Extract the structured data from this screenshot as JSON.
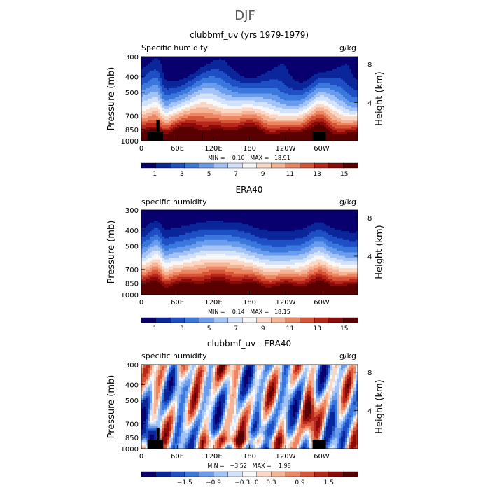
{
  "figure": {
    "title": "DJF"
  },
  "colors": {
    "diverging": [
      "#08006e",
      "#0b259a",
      "#1f4fc4",
      "#3b78dd",
      "#6a9cee",
      "#a3c3f6",
      "#d2e2fb",
      "#f7f7f7",
      "#fad8c5",
      "#f5b495",
      "#ec8663",
      "#d95537",
      "#b8281a",
      "#8c0a0a",
      "#5a0000"
    ]
  },
  "chart_data": [
    {
      "type": "heatmap",
      "title": "clubbmf_uv (yrs 1979-1979)",
      "left_label": "Specific humidity",
      "right_label": "g/kg",
      "ylabel": "Pressure (mb)",
      "y2label": "Height (km)",
      "x_ticks": [
        "0",
        "60E",
        "120E",
        "180",
        "120W",
        "60W"
      ],
      "y_ticks": [
        "300",
        "400",
        "500",
        "700",
        "850",
        "1000"
      ],
      "y2_ticks": [
        "8",
        "4"
      ],
      "stats": "MIN =    0.10   MAX =   18.91",
      "colorbar_labels": [
        "1",
        "3",
        "5",
        "7",
        "9",
        "11",
        "13",
        "15"
      ],
      "colorbar_values": [
        1,
        3,
        5,
        7,
        9,
        11,
        13,
        15
      ],
      "range": [
        0.1,
        18.91
      ],
      "mode": "humidity",
      "topography": true
    },
    {
      "type": "heatmap",
      "title": "ERA40",
      "left_label": "specific humidity",
      "right_label": "g/kg",
      "ylabel": "Pressure (mb)",
      "y2label": "Height (km)",
      "x_ticks": [
        "0",
        "60E",
        "120E",
        "180",
        "120W",
        "60W"
      ],
      "y_ticks": [
        "300",
        "400",
        "500",
        "700",
        "850",
        "1000"
      ],
      "y2_ticks": [
        "8",
        "4"
      ],
      "stats": "MIN =    0.14   MAX =   18.15",
      "colorbar_labels": [
        "1",
        "3",
        "5",
        "7",
        "9",
        "11",
        "13",
        "15"
      ],
      "colorbar_values": [
        1,
        3,
        5,
        7,
        9,
        11,
        13,
        15
      ],
      "range": [
        0.14,
        18.15
      ],
      "mode": "humidity",
      "topography": false
    },
    {
      "type": "heatmap",
      "title": "clubbmf_uv - ERA40",
      "left_label": "specific humidity",
      "right_label": "g/kg",
      "ylabel": "Pressure (mb)",
      "y2label": "Height (km)",
      "x_ticks": [
        "0",
        "60E",
        "120E",
        "180",
        "120W",
        "60W"
      ],
      "y_ticks": [
        "300",
        "400",
        "500",
        "700",
        "850",
        "1000"
      ],
      "y2_ticks": [
        "8",
        "4"
      ],
      "stats": "MIN =   −3.52   MAX =    1.98",
      "colorbar_labels": [
        "−1.5",
        "−0.9",
        "−0.3",
        "0",
        "0.3",
        "0.9",
        "1.5"
      ],
      "colorbar_values": [
        -1.5,
        -0.9,
        -0.3,
        0,
        0.3,
        0.9,
        1.5
      ],
      "range": [
        -3.52,
        1.98
      ],
      "mode": "difference",
      "topography": true
    }
  ]
}
